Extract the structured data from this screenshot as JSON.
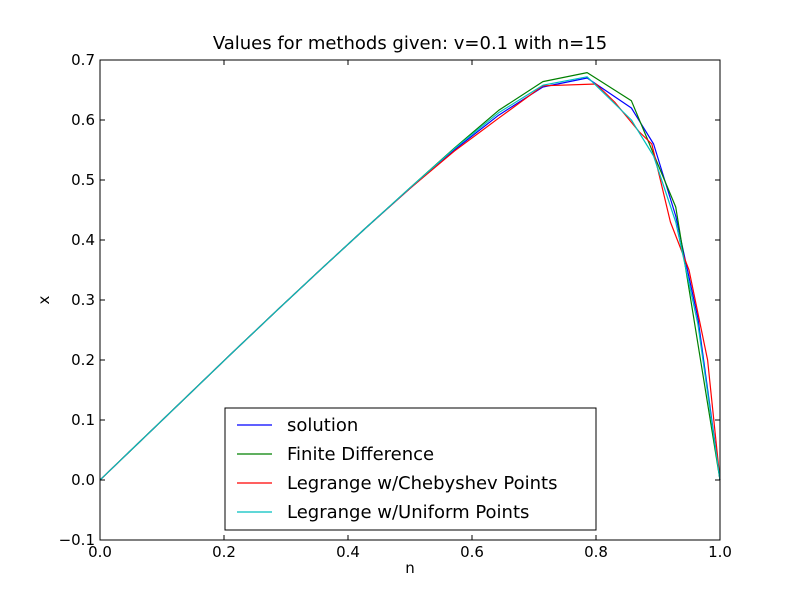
{
  "chart_data": {
    "type": "line",
    "title": "Values for methods given: v=0.1 with n=15",
    "xlabel": "n",
    "ylabel": "x",
    "xlim": [
      0.0,
      1.0
    ],
    "ylim": [
      -0.1,
      0.7
    ],
    "xticks": [
      0.0,
      0.2,
      0.4,
      0.6,
      0.8,
      1.0
    ],
    "xtick_labels": [
      "0.0",
      "0.2",
      "0.4",
      "0.6",
      "0.8",
      "1.0"
    ],
    "yticks": [
      -0.1,
      0.0,
      0.1,
      0.2,
      0.3,
      0.4,
      0.5,
      0.6,
      0.7
    ],
    "ytick_labels": [
      "−0.1",
      "0.0",
      "0.1",
      "0.2",
      "0.3",
      "0.4",
      "0.5",
      "0.6",
      "0.7"
    ],
    "grid": false,
    "legend_position": "bottom-center",
    "series": [
      {
        "name": "solution",
        "color": "#0000ff",
        "x": [
          0.0,
          0.0714,
          0.1429,
          0.2143,
          0.2857,
          0.3571,
          0.4286,
          0.5,
          0.5714,
          0.6429,
          0.7143,
          0.7857,
          0.8571,
          0.8929,
          0.9286,
          0.9643,
          1.0
        ],
        "y": [
          0.0,
          0.071,
          0.142,
          0.213,
          0.283,
          0.352,
          0.42,
          0.486,
          0.55,
          0.608,
          0.655,
          0.67,
          0.62,
          0.56,
          0.44,
          0.27,
          0.0
        ]
      },
      {
        "name": "Finite Difference",
        "color": "#008000",
        "x": [
          0.0,
          0.0714,
          0.1429,
          0.2143,
          0.2857,
          0.3571,
          0.4286,
          0.5,
          0.5714,
          0.6429,
          0.7143,
          0.7857,
          0.8571,
          0.9286,
          1.0
        ],
        "y": [
          0.0,
          0.071,
          0.142,
          0.213,
          0.283,
          0.352,
          0.42,
          0.487,
          0.553,
          0.616,
          0.664,
          0.679,
          0.632,
          0.455,
          0.0
        ]
      },
      {
        "name": "Legrange w/Chebyshev Points",
        "color": "#ff0000",
        "x": [
          0.0,
          0.0714,
          0.1429,
          0.2143,
          0.2857,
          0.3571,
          0.4286,
          0.5,
          0.5714,
          0.6429,
          0.7143,
          0.8,
          0.83,
          0.87,
          0.89,
          0.92,
          0.95,
          0.98,
          1.0
        ],
        "y": [
          0.0,
          0.071,
          0.142,
          0.213,
          0.283,
          0.352,
          0.42,
          0.486,
          0.548,
          0.603,
          0.657,
          0.66,
          0.63,
          0.58,
          0.56,
          0.43,
          0.35,
          0.2,
          0.0
        ]
      },
      {
        "name": "Legrange w/Uniform Points",
        "color": "#00bfbf",
        "x": [
          0.0,
          0.0714,
          0.1429,
          0.2143,
          0.2857,
          0.3571,
          0.4286,
          0.5,
          0.5714,
          0.6429,
          0.7143,
          0.7857,
          0.8571,
          0.8929,
          0.9286,
          0.9643,
          1.0
        ],
        "y": [
          0.0,
          0.071,
          0.142,
          0.213,
          0.283,
          0.352,
          0.42,
          0.487,
          0.552,
          0.612,
          0.658,
          0.672,
          0.6,
          0.54,
          0.43,
          0.26,
          0.0
        ]
      }
    ]
  }
}
